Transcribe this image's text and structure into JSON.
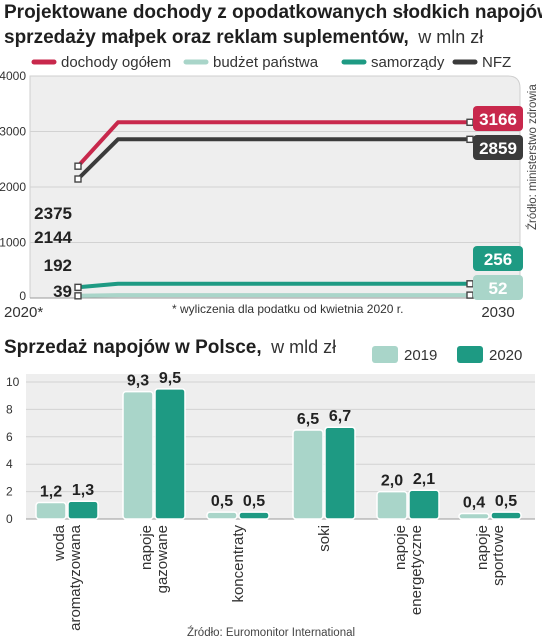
{
  "chart_data": [
    {
      "type": "line",
      "title": "Projektowane dochody z opodatkowanych słodkich napojów,",
      "title_line2": "sprzedaży małpek oraz reklam suplementów,",
      "unit": "w mln zł",
      "ylim": [
        0,
        4000
      ],
      "yticks": [
        "0",
        "1000",
        "2000",
        "3000",
        "4000"
      ],
      "x_start_label": "2020*",
      "x_end_label": "2030",
      "footnote": "* wyliczenia dla podatku od kwietnia 2020 r.",
      "source": "Źródło: ministerstwo zdrowia",
      "x": [
        2020,
        2021,
        2030
      ],
      "series": [
        {
          "name": "dochody ogółem",
          "color": "#c8284c",
          "values": [
            2375,
            3166,
            3166
          ],
          "start_label": "2375",
          "end_label": "3166"
        },
        {
          "name": "budżet państwa",
          "color": "#a9d5c9",
          "values": [
            39,
            52,
            52
          ],
          "start_label": "39",
          "end_label": "52"
        },
        {
          "name": "samorządy",
          "color": "#1e9a83",
          "values": [
            192,
            256,
            256
          ],
          "start_label": "192",
          "end_label": "256"
        },
        {
          "name": "NFZ",
          "color": "#3b3b3b",
          "values": [
            2144,
            2859,
            2859
          ],
          "start_label": "2144",
          "end_label": "2859"
        }
      ]
    },
    {
      "type": "bar",
      "title": "Sprzedaż napojów w Polsce,",
      "unit": "w mld zł",
      "ylim": [
        0,
        10
      ],
      "yticks": [
        "0",
        "2",
        "4",
        "6",
        "8",
        "10"
      ],
      "categories": [
        [
          "woda",
          "aromatyzowana"
        ],
        [
          "napoje",
          "gazowane"
        ],
        [
          "koncentraty"
        ],
        [
          "soki"
        ],
        [
          "napoje",
          "energetyczne"
        ],
        [
          "napoje",
          "sportowe"
        ]
      ],
      "series": [
        {
          "name": "2019",
          "color": "#a9d5c9",
          "values": [
            1.2,
            9.3,
            0.5,
            6.5,
            2.0,
            0.4
          ],
          "labels": [
            "1,2",
            "9,3",
            "0,5",
            "6,5",
            "2,0",
            "0,4"
          ]
        },
        {
          "name": "2020",
          "color": "#1e9a83",
          "values": [
            1.3,
            9.5,
            0.5,
            6.7,
            2.1,
            0.5
          ],
          "labels": [
            "1,3",
            "9,5",
            "0,5",
            "6,7",
            "2,1",
            "0,5"
          ]
        }
      ],
      "source": "Źródło: Euromonitor International"
    }
  ]
}
